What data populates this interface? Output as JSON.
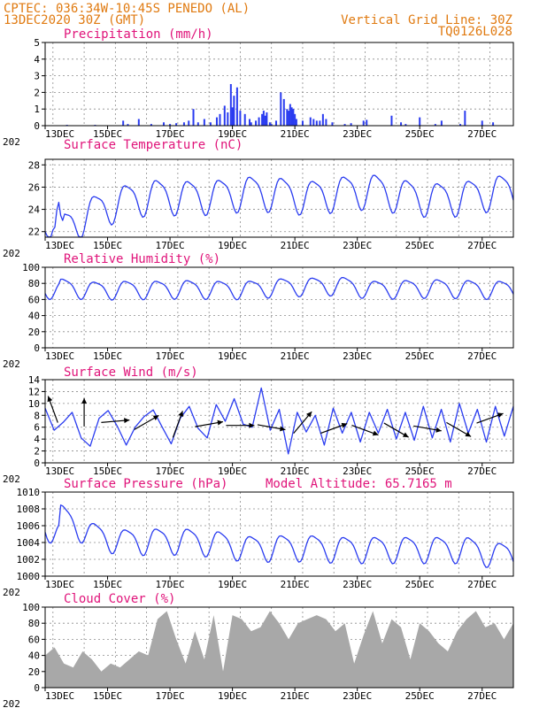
{
  "header": {
    "line1_left": "CPTEC:  036:34W-10:45S  PENEDO (AL)",
    "line2_left": "13DEC2020 30Z (GMT)",
    "line1_right": "Vertical Grid Line: 30Z",
    "line2_right": "TQ0126L028"
  },
  "colors": {
    "header": "#e07a10",
    "title": "#e0147a",
    "line": "#2a3cf0",
    "bar": "#2a3cf0",
    "cloud": "#a8a8a8",
    "arrow": "#000000"
  },
  "x_axis": {
    "start": "2020-12-13T00:00Z",
    "end": "2020-12-28T00:00Z",
    "tick_labels": [
      "13DEC",
      "15DEC",
      "17DEC",
      "19DEC",
      "21DEC",
      "23DEC",
      "25DEC",
      "27DEC"
    ],
    "tick_days": [
      13,
      15,
      17,
      19,
      21,
      23,
      25,
      27
    ],
    "grid_days": [
      13.25,
      14.25,
      15.25,
      16.25,
      17.25,
      18.25,
      19.25,
      20.25,
      21.25,
      22.25,
      23.25,
      24.25,
      25.25,
      26.25,
      27.25
    ],
    "year_stub": "202"
  },
  "chart_data": [
    {
      "type": "bar",
      "title": "Precipitation (mm/h)",
      "ylim": [
        0,
        5
      ],
      "yticks": [
        0,
        1,
        2,
        3,
        4,
        5
      ],
      "x": [
        13.7,
        14.6,
        15.5,
        15.65,
        16.0,
        16.4,
        16.8,
        17.0,
        17.2,
        17.45,
        17.6,
        17.75,
        17.9,
        18.1,
        18.3,
        18.5,
        18.6,
        18.75,
        18.85,
        18.95,
        19.0,
        19.05,
        19.15,
        19.25,
        19.4,
        19.55,
        19.6,
        19.75,
        19.85,
        19.95,
        20.0,
        20.05,
        20.1,
        20.2,
        20.25,
        20.4,
        20.55,
        20.65,
        20.75,
        20.8,
        20.85,
        20.9,
        20.95,
        21.0,
        21.05,
        21.25,
        21.5,
        21.6,
        21.7,
        21.8,
        21.9,
        22.0,
        22.2,
        22.6,
        22.8,
        23.2,
        23.3,
        24.1,
        24.4,
        24.55,
        25.0,
        25.5,
        25.7,
        26.3,
        26.45,
        27.0,
        27.35
      ],
      "values": [
        0.05,
        0.05,
        0.3,
        0.1,
        0.4,
        0.1,
        0.2,
        0.1,
        0.15,
        0.2,
        0.3,
        1.0,
        0.2,
        0.4,
        0.2,
        0.5,
        0.7,
        1.2,
        0.8,
        2.5,
        1.1,
        1.8,
        2.3,
        0.9,
        0.7,
        0.4,
        0.2,
        0.3,
        0.5,
        0.7,
        0.9,
        0.6,
        0.8,
        0.2,
        0.1,
        0.3,
        2.0,
        1.6,
        1.0,
        0.9,
        1.3,
        1.1,
        1.0,
        0.7,
        0.4,
        0.3,
        0.5,
        0.4,
        0.3,
        0.3,
        0.7,
        0.4,
        0.2,
        0.1,
        0.15,
        0.3,
        0.35,
        0.6,
        0.2,
        0.1,
        0.5,
        0.1,
        0.3,
        0.1,
        0.9,
        0.3,
        0.2
      ]
    },
    {
      "type": "line",
      "title": "Surface Temperature (nC)",
      "ylim": [
        21.5,
        28.5
      ],
      "yticks": [
        22,
        24,
        26,
        28
      ],
      "mean": [
        22.2,
        23.8,
        24.8,
        25.3,
        25.2,
        25.3,
        25.6,
        25.5,
        25.2,
        25.6,
        25.8,
        25.3,
        25.0,
        25.2,
        25.7
      ],
      "amplitude": 1.5,
      "extras": [
        {
          "x": 13.0,
          "y": 22.0
        },
        {
          "x": 13.3,
          "y": 22.4
        },
        {
          "x": 13.55,
          "y": 23.0
        }
      ]
    },
    {
      "type": "line",
      "title": "Relative Humidity (%)",
      "ylim": [
        0,
        100
      ],
      "yticks": [
        0,
        20,
        40,
        60,
        80,
        100
      ],
      "mean": [
        76,
        72,
        73,
        73,
        74,
        73,
        73,
        76,
        77,
        78,
        73,
        74,
        75,
        74,
        73
      ],
      "amplitude": 11
    },
    {
      "type": "line",
      "title": "Surface Wind (m/s)",
      "ylim": [
        0,
        14
      ],
      "yticks": [
        0,
        2,
        4,
        6,
        8,
        10,
        12,
        14
      ],
      "speed": [
        9.2,
        5.5,
        6.8,
        8.5,
        4.2,
        2.8,
        7.5,
        8.8,
        6.2,
        3.0,
        6.0,
        7.8,
        8.9,
        6.0,
        3.2,
        7.5,
        9.5,
        5.8,
        4.2,
        9.8,
        7.0,
        10.8,
        6.5,
        6.0,
        12.6,
        5.5,
        9.0,
        1.5,
        8.5,
        5.2,
        8.0,
        3.0,
        9.2,
        5.0,
        8.5,
        3.5,
        8.5,
        5.0,
        9.0,
        4.0,
        8.5,
        3.8,
        9.5,
        4.2,
        9.0,
        3.5,
        10.0,
        5.0,
        9.0,
        3.5,
        9.5,
        4.5,
        9.5
      ],
      "arrows": [
        {
          "x": 13.25,
          "y": 9.0,
          "dir": 200
        },
        {
          "x": 14.25,
          "y": 8.5,
          "dir": 180
        },
        {
          "x": 15.25,
          "y": 7.0,
          "dir": 95
        },
        {
          "x": 16.25,
          "y": 6.8,
          "dir": 120
        },
        {
          "x": 17.25,
          "y": 6.5,
          "dir": 160
        },
        {
          "x": 18.25,
          "y": 6.5,
          "dir": 100
        },
        {
          "x": 19.25,
          "y": 6.3,
          "dir": 90
        },
        {
          "x": 20.25,
          "y": 6.0,
          "dir": 80
        },
        {
          "x": 21.25,
          "y": 6.8,
          "dir": 140
        },
        {
          "x": 22.25,
          "y": 5.8,
          "dir": 110
        },
        {
          "x": 23.25,
          "y": 5.5,
          "dir": 70
        },
        {
          "x": 24.25,
          "y": 5.5,
          "dir": 60
        },
        {
          "x": 25.25,
          "y": 5.8,
          "dir": 80
        },
        {
          "x": 26.25,
          "y": 5.6,
          "dir": 60
        },
        {
          "x": 27.25,
          "y": 7.5,
          "dir": 110
        }
      ]
    },
    {
      "type": "line",
      "title": "Surface Pressure (hPa)",
      "subtitle": "Model Altitude: 65.7165 m",
      "ylim": [
        1000,
        1010
      ],
      "yticks": [
        1000,
        1002,
        1004,
        1006,
        1008,
        1010
      ],
      "mean": [
        1007.2,
        1005.0,
        1004.2,
        1004.3,
        1004.3,
        1004.0,
        1003.4,
        1003.5,
        1003.5,
        1003.3,
        1003.3,
        1003.3,
        1003.3,
        1003.3,
        1002.6
      ],
      "amplitude": 1.5
    },
    {
      "type": "area",
      "title": "Cloud Cover (%)",
      "ylim": [
        0,
        100
      ],
      "yticks": [
        0,
        20,
        40,
        60,
        80,
        100
      ],
      "x": [
        13.0,
        13.3,
        13.6,
        13.9,
        14.2,
        14.5,
        14.8,
        15.1,
        15.4,
        15.7,
        16.0,
        16.3,
        16.6,
        16.9,
        17.2,
        17.5,
        17.8,
        18.1,
        18.4,
        18.7,
        19.0,
        19.3,
        19.6,
        19.9,
        20.2,
        20.5,
        20.8,
        21.1,
        21.4,
        21.7,
        22.0,
        22.3,
        22.6,
        22.9,
        23.2,
        23.5,
        23.8,
        24.1,
        24.4,
        24.7,
        25.0,
        25.3,
        25.6,
        25.9,
        26.2,
        26.5,
        26.8,
        27.1,
        27.4,
        27.7,
        28.0
      ],
      "values": [
        40,
        50,
        30,
        25,
        45,
        35,
        20,
        30,
        25,
        35,
        45,
        40,
        85,
        95,
        60,
        30,
        70,
        35,
        90,
        20,
        90,
        85,
        70,
        75,
        95,
        80,
        60,
        80,
        85,
        90,
        85,
        70,
        80,
        30,
        65,
        95,
        55,
        85,
        75,
        35,
        80,
        70,
        55,
        45,
        70,
        85,
        95,
        75,
        80,
        60,
        80
      ]
    }
  ]
}
